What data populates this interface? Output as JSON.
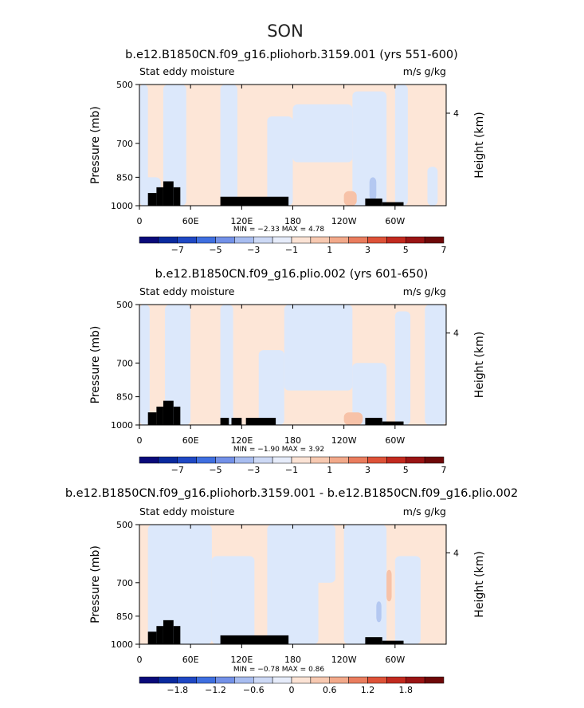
{
  "figure": {
    "super_title": "SON"
  },
  "chart_data": [
    {
      "type": "heatmap",
      "title": "b.e12.B1850CN.f09_g16.pliohorb.3159.001 (yrs 551-600)",
      "left_label": "Stat eddy moisture",
      "right_label": "m/s g/kg",
      "ylabel": "Pressure (mb)",
      "ylabel_right": "Height (km)",
      "yticks": [
        "500",
        "700",
        "850",
        "1000"
      ],
      "yticks_right": [
        "4"
      ],
      "xticks": [
        "0",
        "60E",
        "120E",
        "180",
        "120W",
        "60W"
      ],
      "stats_text": "MIN =   −2.33   MAX =    4.78",
      "min": -2.33,
      "max": 4.78,
      "colorbar_labels": [
        "−7",
        "−5",
        "−3",
        "−1",
        "1",
        "3",
        "5",
        "7"
      ]
    },
    {
      "type": "heatmap",
      "title": "b.e12.B1850CN.f09_g16.plio.002 (yrs 601-650)",
      "left_label": "Stat eddy moisture",
      "right_label": "m/s g/kg",
      "ylabel": "Pressure (mb)",
      "ylabel_right": "Height (km)",
      "yticks": [
        "500",
        "700",
        "850",
        "1000"
      ],
      "yticks_right": [
        "4"
      ],
      "xticks": [
        "0",
        "60E",
        "120E",
        "180",
        "120W",
        "60W"
      ],
      "stats_text": "MIN =   −1.90   MAX =    3.92",
      "min": -1.9,
      "max": 3.92,
      "colorbar_labels": [
        "−7",
        "−5",
        "−3",
        "−1",
        "1",
        "3",
        "5",
        "7"
      ]
    },
    {
      "type": "heatmap",
      "title": "b.e12.B1850CN.f09_g16.pliohorb.3159.001 - b.e12.B1850CN.f09_g16.plio.002",
      "left_label": "Stat eddy moisture",
      "right_label": "m/s g/kg",
      "ylabel": "Pressure (mb)",
      "ylabel_right": "Height (km)",
      "yticks": [
        "500",
        "700",
        "850",
        "1000"
      ],
      "yticks_right": [
        "4"
      ],
      "xticks": [
        "0",
        "60E",
        "120E",
        "180",
        "120W",
        "60W"
      ],
      "stats_text": "MIN =   −0.78   MAX =    0.86",
      "min": -0.78,
      "max": 0.86,
      "colorbar_labels": [
        "−1.8",
        "−1.2",
        "−0.6",
        "0",
        "0.6",
        "1.2",
        "1.8"
      ]
    }
  ],
  "colors": {
    "colorbar": [
      "#0a0a7a",
      "#0a2a9e",
      "#1f48c4",
      "#3f6fe0",
      "#7391e8",
      "#a8bdf0",
      "#cdd9f5",
      "#e6ecfa",
      "#fbe3d5",
      "#f7c9b1",
      "#f2a98a",
      "#ea7d5e",
      "#de5238",
      "#c22a1f",
      "#9a1414",
      "#6e0808"
    ],
    "positive": "#fde6d7",
    "negative": "#dce8fb",
    "strong_pos": "#f7c2a8",
    "strong_neg": "#b4c8f1",
    "terrain": "#000000"
  }
}
